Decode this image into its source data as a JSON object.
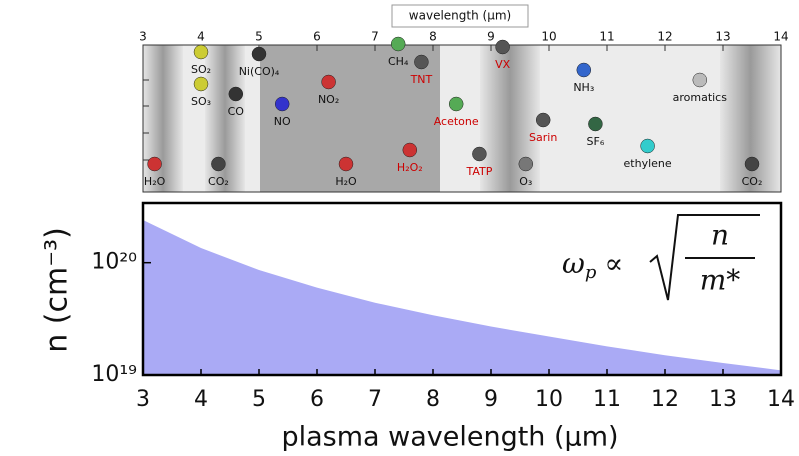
{
  "chart_data": [
    {
      "type": "annotation",
      "title": "wavelength (µm)",
      "xlim": [
        3,
        14
      ],
      "xticks": [
        3,
        4,
        5,
        6,
        7,
        8,
        9,
        10,
        11,
        12,
        13,
        14
      ],
      "categories": [
        "H₂O",
        "SO₂",
        "SO₃",
        "CO₂",
        "Ni(CO)₄",
        "CO",
        "NO",
        "NO₂",
        "H₂O",
        "H₂O₂",
        "CH₄",
        "TNT",
        "Acetone",
        "TATP",
        "VX",
        "Sarin",
        "O₃",
        "NH₃",
        "SF₆",
        "ethylene",
        "aromatics",
        "CO₂"
      ],
      "x": [
        3.2,
        4.0,
        4.0,
        4.3,
        5.0,
        4.6,
        5.4,
        6.2,
        6.5,
        7.6,
        7.4,
        7.8,
        8.4,
        8.8,
        9.2,
        9.9,
        9.6,
        10.6,
        10.8,
        11.7,
        12.6,
        13.5
      ],
      "colors": [
        "#111",
        "#111",
        "#111",
        "#111",
        "#111",
        "#111",
        "#111",
        "#111",
        "#111",
        "#c00",
        "#111",
        "#c00",
        "#c00",
        "#c00",
        "#c00",
        "#c00",
        "#111",
        "#111",
        "#111",
        "#111",
        "#111",
        "#111"
      ]
    },
    {
      "type": "area",
      "x_label": "plasma wavelength (µm)",
      "y_label": "n (cm⁻³)",
      "x": [
        3,
        4,
        5,
        6,
        7,
        8,
        9,
        10,
        11,
        12,
        13,
        14
      ],
      "values": [
        2.4e+20,
        1.35e+20,
        8.6e+19,
        6e+19,
        4.4e+19,
        3.4e+19,
        2.7e+19,
        2.2e+19,
        1.8e+19,
        1.5e+19,
        1.28e+19,
        1.1e+19
      ],
      "color": "#aaaaf5",
      "xlim": [
        3,
        14
      ],
      "xticks": [
        3,
        4,
        5,
        6,
        7,
        8,
        9,
        10,
        11,
        12,
        13,
        14
      ],
      "log_y": true,
      "ylim": [
        1e+19,
        3.4e+20
      ],
      "yticks": [
        {
          "value": 1e+19,
          "label": "10¹⁹"
        },
        {
          "value": 1e+20,
          "label": "10²⁰"
        }
      ],
      "formula": {
        "omega": "ω",
        "subscript": "p",
        "relation": "∝",
        "numerator": "n",
        "denominator": "m*"
      }
    }
  ]
}
